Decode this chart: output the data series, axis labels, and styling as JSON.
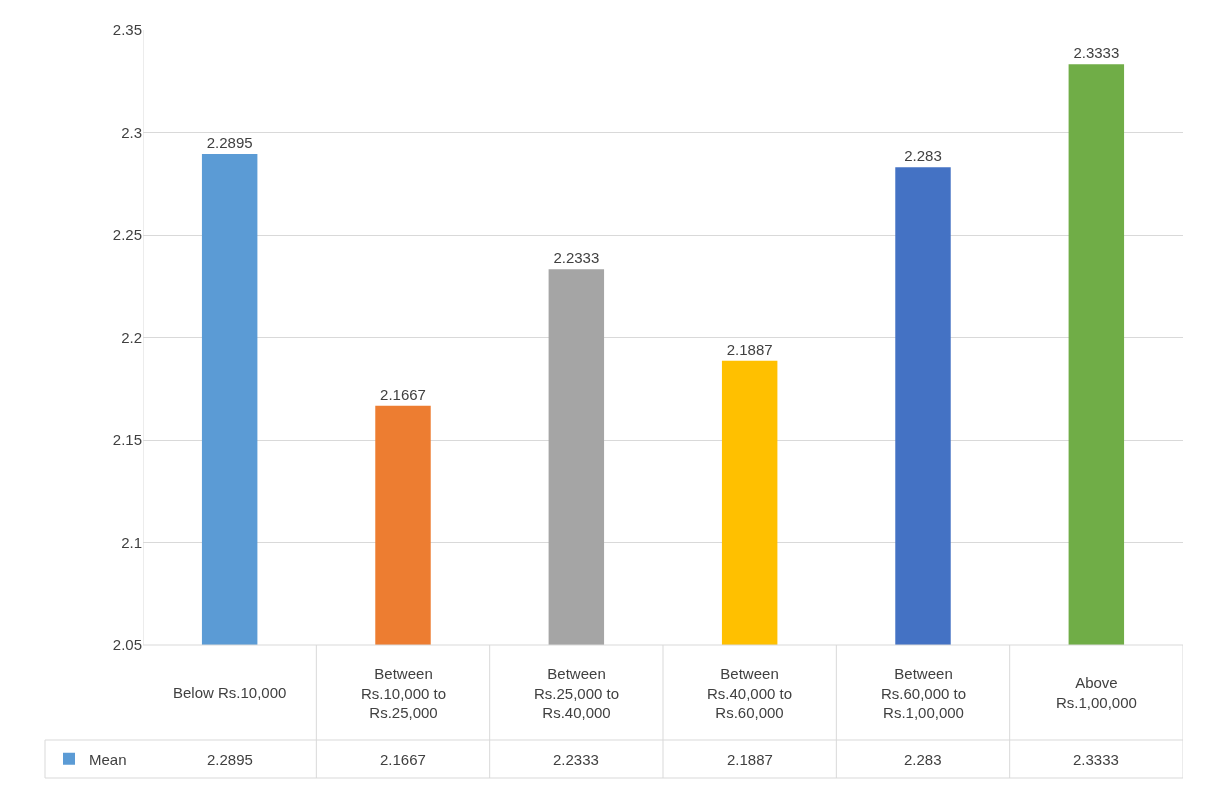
{
  "chart_data": {
    "type": "bar",
    "categories": [
      "Below Rs.10,000",
      "Between Rs.10,000 to Rs.25,000",
      "Between Rs.25,000 to Rs.40,000",
      "Between Rs.40,000 to Rs.60,000",
      "Between Rs.60,000 to Rs.1,00,000",
      "Above Rs.1,00,000"
    ],
    "series": [
      {
        "name": "Mean",
        "color": "#5b9bd5",
        "colors": [
          "#5b9bd5",
          "#ed7d31",
          "#a5a5a5",
          "#ffc000",
          "#4472c4",
          "#70ad47"
        ],
        "values": [
          2.2895,
          2.1667,
          2.2333,
          2.1887,
          2.283,
          2.3333
        ],
        "value_labels": [
          "2.2895",
          "2.1667",
          "2.2333",
          "2.1887",
          "2.283",
          "2.3333"
        ]
      }
    ],
    "ylim": [
      2.05,
      2.35
    ],
    "yticks": [
      2.05,
      2.1,
      2.15,
      2.2,
      2.25,
      2.3,
      2.35
    ],
    "annotations": [
      "2.2895",
      "2.1667",
      "2.2333",
      "2.1887",
      "2.283",
      "2.3333"
    ],
    "grid": "y",
    "legend": "bottom left"
  }
}
